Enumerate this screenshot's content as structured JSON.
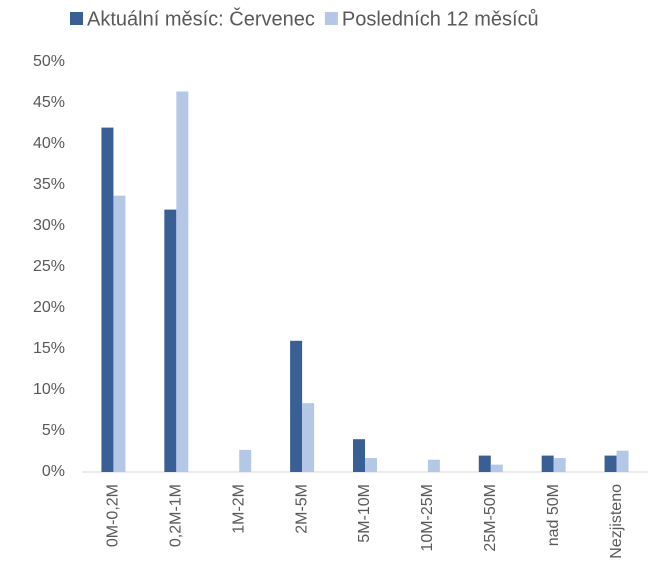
{
  "chart_data": {
    "type": "bar",
    "categories": [
      "0M-0,2M",
      "0,2M-1M",
      "1M-2M",
      "2M-5M",
      "5M-10M",
      "10M-25M",
      "25M-50M",
      "nad 50M",
      "Nezjisteno"
    ],
    "series": [
      {
        "name": "Aktuální měsíc: Červenec",
        "color": "#3a5f94",
        "values": [
          42,
          32,
          0,
          16,
          4,
          0,
          2,
          2,
          2
        ]
      },
      {
        "name": "Posledních 12 měsíců",
        "color": "#b4c7e7",
        "values": [
          33.7,
          46.4,
          2.7,
          8.4,
          1.7,
          1.5,
          0.9,
          1.7,
          2.6
        ]
      }
    ],
    "ylim": [
      0,
      50
    ],
    "yticks": [
      {
        "value": 0,
        "label": "0%"
      },
      {
        "value": 5,
        "label": "5%"
      },
      {
        "value": 10,
        "label": "10%"
      },
      {
        "value": 15,
        "label": "15%"
      },
      {
        "value": 20,
        "label": "20%"
      },
      {
        "value": 25,
        "label": "25%"
      },
      {
        "value": 30,
        "label": "30%"
      },
      {
        "value": 35,
        "label": "35%"
      },
      {
        "value": 40,
        "label": "40%"
      },
      {
        "value": 45,
        "label": "45%"
      },
      {
        "value": 50,
        "label": "50%"
      }
    ],
    "legend": "top"
  }
}
